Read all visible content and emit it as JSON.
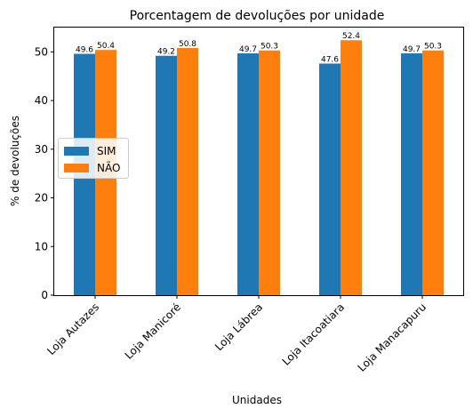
{
  "chart_data": {
    "type": "bar",
    "title": "Porcentagem de devoluções por unidade",
    "xlabel": "Unidades",
    "ylabel": "% de devoluções",
    "categories": [
      "Loja Autazes",
      "Loja Manicoré",
      "Loja Lábrea",
      "Loja Itacoatiara",
      "Loja Manacapuru"
    ],
    "series": [
      {
        "name": "SIM",
        "values": [
          49.6,
          49.2,
          49.7,
          47.6,
          49.7
        ],
        "color": "#1f77b4"
      },
      {
        "name": "NÃO",
        "values": [
          50.4,
          50.8,
          50.3,
          52.4,
          50.3
        ],
        "color": "#ff7f0e"
      }
    ],
    "data_labels": [
      [
        "49.6",
        "49.2",
        "49.7",
        "47.6",
        "49.7"
      ],
      [
        "50.4",
        "50.8",
        "50.3",
        "52.4",
        "50.3"
      ]
    ],
    "ylim": [
      0,
      55
    ],
    "yticks": [
      0,
      10,
      20,
      30,
      40,
      50
    ],
    "grid": false,
    "legend_position": "center-left"
  }
}
